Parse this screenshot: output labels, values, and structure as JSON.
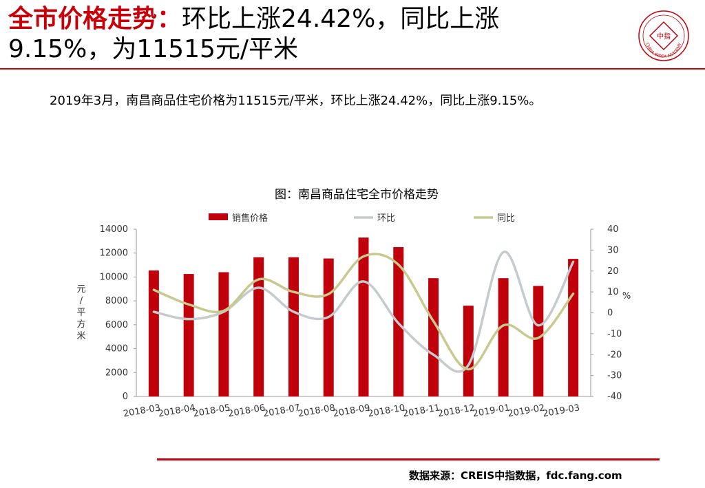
{
  "header": {
    "title_highlight": "全市价格走势：",
    "title_rest": "环比上涨24.42%，同比上涨",
    "title_line2": "9.15%，为11515元/平米"
  },
  "logo": {
    "center_text": "中指",
    "ring_text": "CHINA INDEX ACADEMY",
    "color": "#c0000a"
  },
  "summary": "2019年3月，南昌商品住宅价格为11515元/平米，环比上涨24.42%，同比上涨9.15%。",
  "chart_data": {
    "type": "bar",
    "title": "图：南昌商品住宅全市价格走势",
    "categories": [
      "2018-03",
      "2018-04",
      "2018-05",
      "2018-06",
      "2018-07",
      "2018-08",
      "2018-09",
      "2018-10",
      "2018-11",
      "2018-12",
      "2019-01",
      "2019-02",
      "2019-03"
    ],
    "series": [
      {
        "name": "销售价格",
        "type": "bar",
        "axis": "left",
        "color": "#c0000a",
        "values": [
          10550,
          10250,
          10400,
          11650,
          11650,
          11550,
          13300,
          12500,
          9900,
          7600,
          9900,
          9250,
          11515
        ]
      },
      {
        "name": "环比",
        "type": "line",
        "axis": "right",
        "color": "#c5cbcd",
        "values": [
          0.5,
          -3,
          0.5,
          12,
          0.5,
          -2,
          15,
          -5,
          -20,
          -25,
          29,
          -6,
          24.42
        ]
      },
      {
        "name": "同比",
        "type": "line",
        "axis": "right",
        "color": "#c8c98e",
        "values": [
          11,
          4,
          1,
          16,
          10,
          9,
          27,
          23,
          -4,
          -27,
          -6,
          -12,
          9.15
        ]
      }
    ],
    "y_left": {
      "label": "元/平方米",
      "min": 0,
      "max": 14000,
      "ticks": [
        0,
        2000,
        4000,
        6000,
        8000,
        10000,
        12000,
        14000
      ]
    },
    "y_right": {
      "label": "%",
      "min": -40,
      "max": 40,
      "ticks": [
        -40,
        -30,
        -20,
        -10,
        0,
        10,
        20,
        30,
        40
      ]
    },
    "legend_position": "top",
    "grid": false
  },
  "footer": "数据来源：CREIS中指数据，fdc.fang.com"
}
